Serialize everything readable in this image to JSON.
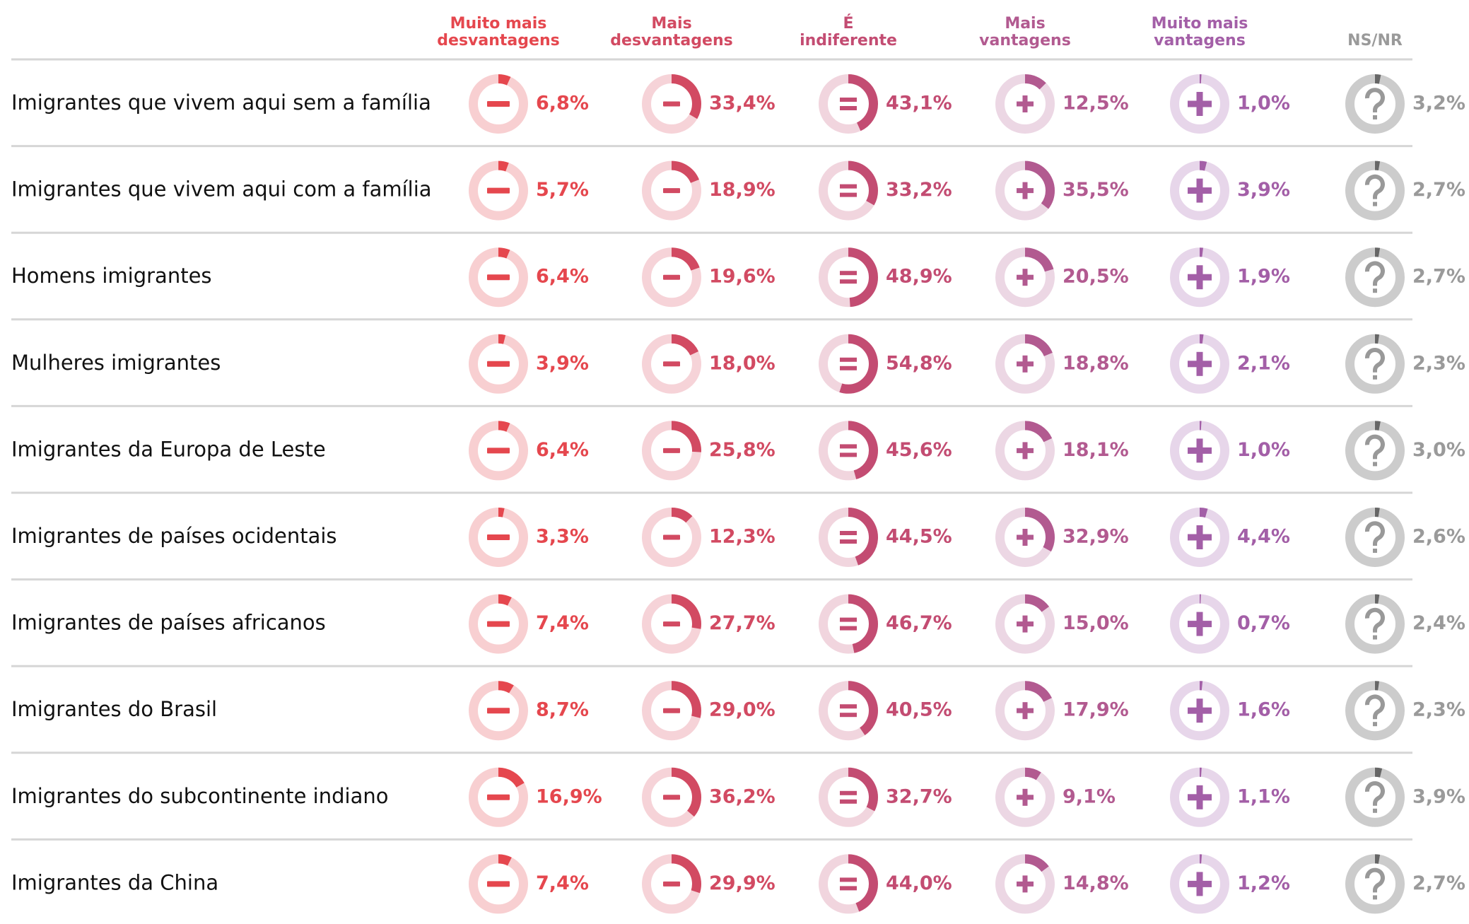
{
  "chart_data": {
    "type": "donut-table",
    "categories": [
      "Imigrantes que vivem aqui sem a família",
      "Imigrantes que vivem aqui com a família",
      "Homens imigrantes",
      "Mulheres imigrantes",
      "Imigrantes da Europa de Leste",
      "Imigrantes de países ocidentais",
      "Imigrantes de países africanos",
      "Imigrantes do Brasil",
      "Imigrantes do subcontinente indiano",
      "Imigrantes da China"
    ],
    "series": [
      {
        "name": "Muito mais\ndesvantagens",
        "color": "#e5474e",
        "track_color": "#f8cfd1",
        "values": [
          6.8,
          5.7,
          6.4,
          3.9,
          6.4,
          3.3,
          7.4,
          8.7,
          16.9,
          7.4
        ],
        "value_labels": [
          "6,8%",
          "5,7%",
          "6,4%",
          "3,9%",
          "6,4%",
          "3,3%",
          "7,4%",
          "8,7%",
          "16,9%",
          "7,4%"
        ]
      },
      {
        "name": "Mais\ndesvantagens",
        "color": "#d24a62",
        "track_color": "#f6d3d8",
        "values": [
          33.4,
          18.9,
          19.6,
          18.0,
          25.8,
          12.3,
          27.7,
          29.0,
          36.2,
          29.9
        ],
        "value_labels": [
          "33,4%",
          "18,9%",
          "19,6%",
          "18,0%",
          "25,8%",
          "12,3%",
          "27,7%",
          "29,0%",
          "36,2%",
          "29,9%"
        ]
      },
      {
        "name": "É\nindiferente",
        "color": "#c34c72",
        "track_color": "#f1d5de",
        "values": [
          43.1,
          33.2,
          48.9,
          54.8,
          45.6,
          44.5,
          46.7,
          40.5,
          32.7,
          44.0
        ],
        "value_labels": [
          "43,1%",
          "33,2%",
          "48,9%",
          "54,8%",
          "45,6%",
          "44,5%",
          "46,7%",
          "40,5%",
          "32,7%",
          "44,0%"
        ]
      },
      {
        "name": "Mais\nvantagens",
        "color": "#b25a90",
        "track_color": "#ecd7e4",
        "values": [
          12.5,
          35.5,
          20.5,
          18.8,
          18.1,
          32.9,
          15.0,
          17.9,
          9.1,
          14.8
        ],
        "value_labels": [
          "12,5%",
          "35,5%",
          "20,5%",
          "18,8%",
          "18,1%",
          "32,9%",
          "15,0%",
          "17,9%",
          "9,1%",
          "14,8%"
        ]
      },
      {
        "name": "Muito mais\nvantagens",
        "color": "#a35fa7",
        "track_color": "#e7d6ea",
        "values": [
          1.0,
          3.9,
          1.9,
          2.1,
          1.0,
          4.4,
          0.7,
          1.6,
          1.1,
          1.2
        ],
        "value_labels": [
          "1,0%",
          "3,9%",
          "1,9%",
          "2,1%",
          "1,0%",
          "4,4%",
          "0,7%",
          "1,6%",
          "1,1%",
          "1,2%"
        ]
      },
      {
        "name": "NS/NR",
        "color": "#666666",
        "track_color": "#cccccc",
        "label_color": "#9a9a9a",
        "values": [
          3.2,
          2.7,
          2.7,
          2.3,
          3.0,
          2.6,
          2.4,
          2.3,
          3.9,
          2.7
        ],
        "value_labels": [
          "3,2%",
          "2,7%",
          "2,7%",
          "2,3%",
          "3,0%",
          "2,6%",
          "2,4%",
          "2,3%",
          "3,9%",
          "2,7%"
        ]
      }
    ]
  }
}
